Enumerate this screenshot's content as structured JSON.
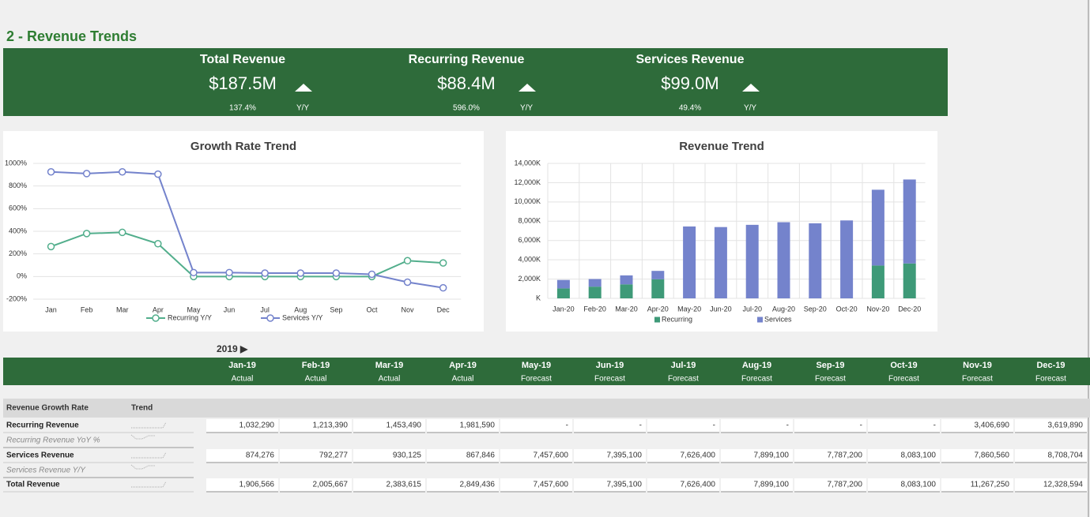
{
  "title": "2 - Revenue Trends",
  "kpis": [
    {
      "label": "Total Revenue",
      "value": "$187.5M",
      "change": "137.4%",
      "period": "Y/Y"
    },
    {
      "label": "Recurring Revenue",
      "value": "$88.4M",
      "change": "596.0%",
      "period": "Y/Y"
    },
    {
      "label": "Services Revenue",
      "value": "$99.0M",
      "change": "49.4%",
      "period": "Y/Y"
    }
  ],
  "chart_data": [
    {
      "type": "line",
      "title": "Growth Rate Trend",
      "categories": [
        "Jan",
        "Feb",
        "Mar",
        "Apr",
        "May",
        "Jun",
        "Jul",
        "Aug",
        "Sep",
        "Oct",
        "Nov",
        "Dec"
      ],
      "series": [
        {
          "name": "Recurring Y/Y",
          "color": "#52ae8c",
          "values": [
            265,
            380,
            390,
            290,
            0,
            0,
            0,
            0,
            0,
            0,
            140,
            120
          ]
        },
        {
          "name": "Services Y/Y",
          "color": "#7483cc",
          "values": [
            925,
            910,
            925,
            905,
            35,
            35,
            30,
            30,
            30,
            20,
            -50,
            -100
          ]
        }
      ],
      "ylim": [
        -200,
        1000
      ],
      "yticks": [
        {
          "value": -200,
          "label": "-200%"
        },
        {
          "value": 0,
          "label": "0%"
        },
        {
          "value": 200,
          "label": "200%"
        },
        {
          "value": 400,
          "label": "400%"
        },
        {
          "value": 600,
          "label": "600%"
        },
        {
          "value": 800,
          "label": "800%"
        },
        {
          "value": 1000,
          "label": "1000%"
        }
      ],
      "grid": true,
      "legend": "bottom"
    },
    {
      "type": "bar",
      "stacked": true,
      "title": "Revenue Trend",
      "categories": [
        "Jan-20",
        "Feb-20",
        "Mar-20",
        "Apr-20",
        "May-20",
        "Jun-20",
        "Jul-20",
        "Aug-20",
        "Sep-20",
        "Oct-20",
        "Nov-20",
        "Dec-20"
      ],
      "series": [
        {
          "name": "Recurring",
          "color": "#3e9a78",
          "values": [
            1032290,
            1213390,
            1453490,
            1981590,
            0,
            0,
            0,
            0,
            0,
            0,
            3406690,
            3619890
          ]
        },
        {
          "name": "Services",
          "color": "#7483cc",
          "values": [
            874276,
            792277,
            930125,
            867846,
            7457600,
            7395100,
            7626400,
            7899100,
            7787200,
            8083100,
            7860560,
            8708704
          ]
        }
      ],
      "ylim": [
        0,
        14000000
      ],
      "yticks": [
        {
          "value": 0,
          "label": "K"
        },
        {
          "value": 2000000,
          "label": "2,000K"
        },
        {
          "value": 4000000,
          "label": "4,000K"
        },
        {
          "value": 6000000,
          "label": "6,000K"
        },
        {
          "value": 8000000,
          "label": "8,000K"
        },
        {
          "value": 10000000,
          "label": "10,000K"
        },
        {
          "value": 12000000,
          "label": "12,000K"
        },
        {
          "value": 14000000,
          "label": "14,000K"
        }
      ],
      "grid": true,
      "legend": "bottom"
    }
  ],
  "table": {
    "period": "2019 ▶",
    "columns": [
      {
        "month": "Jan-19",
        "status": "Actual"
      },
      {
        "month": "Feb-19",
        "status": "Actual"
      },
      {
        "month": "Mar-19",
        "status": "Actual"
      },
      {
        "month": "Apr-19",
        "status": "Actual"
      },
      {
        "month": "May-19",
        "status": "Forecast"
      },
      {
        "month": "Jun-19",
        "status": "Forecast"
      },
      {
        "month": "Jul-19",
        "status": "Forecast"
      },
      {
        "month": "Aug-19",
        "status": "Forecast"
      },
      {
        "month": "Sep-19",
        "status": "Forecast"
      },
      {
        "month": "Oct-19",
        "status": "Forecast"
      },
      {
        "month": "Nov-19",
        "status": "Forecast"
      },
      {
        "month": "Dec-19",
        "status": "Forecast"
      }
    ],
    "header": [
      "Revenue Growth Rate",
      "Trend"
    ],
    "rows": [
      {
        "label": "Recurring Revenue",
        "values": [
          "1,032,290",
          "1,213,390",
          "1,453,490",
          "1,981,590",
          "-",
          "-",
          "-",
          "-",
          "-",
          "-",
          "3,406,690",
          "3,619,890"
        ]
      },
      {
        "label": "Recurring Revenue YoY %",
        "italic": true
      },
      {
        "label": "Services Revenue",
        "values": [
          "874,276",
          "792,277",
          "930,125",
          "867,846",
          "7,457,600",
          "7,395,100",
          "7,626,400",
          "7,899,100",
          "7,787,200",
          "8,083,100",
          "7,860,560",
          "8,708,704"
        ]
      },
      {
        "label": "Services Revenue Y/Y",
        "italic": true
      },
      {
        "label": "Total Revenue",
        "values": [
          "1,906,566",
          "2,005,667",
          "2,383,615",
          "2,849,436",
          "7,457,600",
          "7,395,100",
          "7,626,400",
          "7,899,100",
          "7,787,200",
          "8,083,100",
          "11,267,250",
          "12,328,594"
        ]
      }
    ]
  }
}
